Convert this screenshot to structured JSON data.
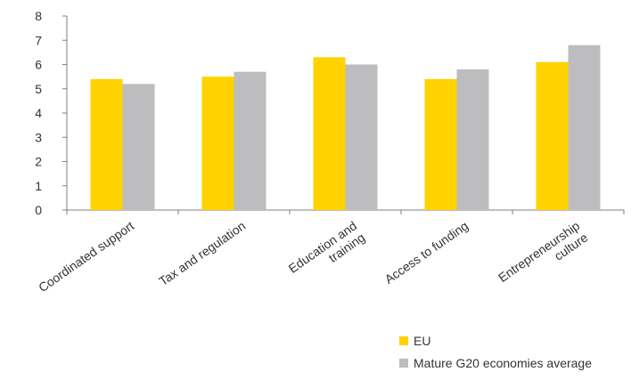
{
  "chart_data": {
    "type": "bar",
    "categories": [
      [
        "Coordinated support"
      ],
      [
        "Tax and regulation"
      ],
      [
        "Education and",
        "training"
      ],
      [
        "Access to funding"
      ],
      [
        "Entrepreneurship",
        "culture"
      ]
    ],
    "series": [
      {
        "name": "EU",
        "color": "#FFD200",
        "values": [
          5.4,
          5.5,
          6.3,
          5.4,
          6.1
        ]
      },
      {
        "name": "Mature G20 economies average",
        "color": "#BDBDBF",
        "values": [
          5.2,
          5.7,
          6.0,
          5.8,
          6.8
        ]
      }
    ],
    "yticks": [
      0,
      1,
      2,
      3,
      4,
      5,
      6,
      7,
      8
    ],
    "ylim": [
      0,
      8
    ],
    "grid": false,
    "legend_position": "bottom-right"
  }
}
